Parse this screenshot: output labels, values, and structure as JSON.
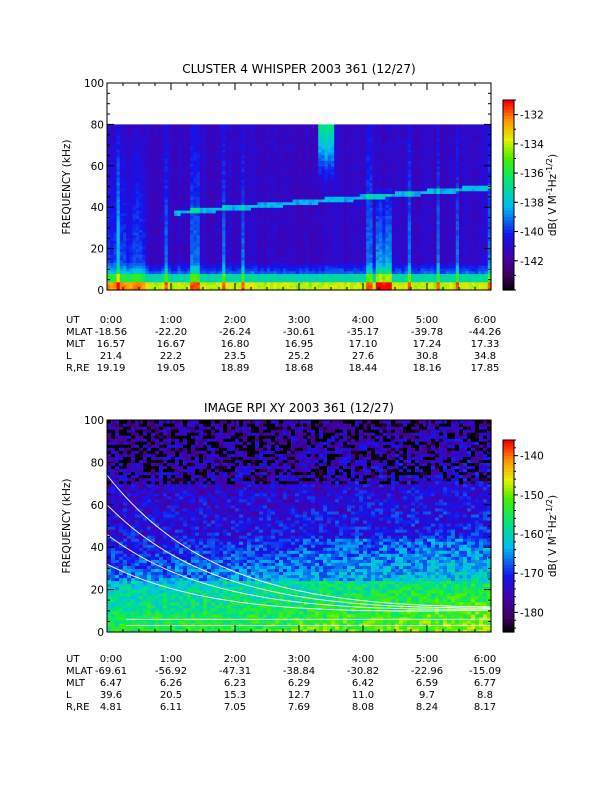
{
  "chart_data": [
    {
      "type": "heatmap",
      "title": "CLUSTER 4 WHISPER 2003 361 (12/27)",
      "ylabel": "FREQUENCY (kHz)",
      "ylim": [
        0,
        100
      ],
      "yticks": [
        "0",
        "20",
        "40",
        "60",
        "80",
        "100"
      ],
      "x_ticks": [
        "0:00",
        "1:00",
        "2:00",
        "3:00",
        "4:00",
        "5:00",
        "6:00"
      ],
      "x_range_ut_hours": [
        0,
        6
      ],
      "data_upper_limit_khz": 80,
      "colorbar": {
        "label": "dB( V M",
        "label_sup1": "-1",
        "label_mid": " Hz",
        "label_sup2": "-1/2",
        "label_end": ")",
        "range": [
          -144,
          -131
        ],
        "ticks": [
          "-132",
          "-134",
          "-136",
          "-138",
          "-140",
          "-142"
        ]
      },
      "ephemeris": [
        {
          "label": "UT",
          "values": [
            "0:00",
            "1:00",
            "2:00",
            "3:00",
            "4:00",
            "5:00",
            "6:00"
          ]
        },
        {
          "label": "MLAT",
          "values": [
            "-18.56",
            "-22.20",
            "-26.24",
            "-30.61",
            "-35.17",
            "-39.78",
            "-44.26"
          ]
        },
        {
          "label": "MLT",
          "values": [
            "16.57",
            "16.67",
            "16.80",
            "16.95",
            "17.10",
            "17.24",
            "17.33"
          ]
        },
        {
          "label": "L",
          "values": [
            "21.4",
            "22.2",
            "23.5",
            "25.2",
            "27.6",
            "30.8",
            "34.8"
          ]
        },
        {
          "label": "R,RE",
          "values": [
            "19.19",
            "19.05",
            "18.89",
            "18.68",
            "18.44",
            "18.16",
            "17.85"
          ]
        }
      ]
    },
    {
      "type": "heatmap",
      "title": "IMAGE RPI XY 2003 361 (12/27)",
      "ylabel": "FREQUENCY (kHz)",
      "ylim": [
        0,
        100
      ],
      "yticks": [
        "0",
        "20",
        "40",
        "60",
        "80",
        "100"
      ],
      "x_ticks": [
        "0:00",
        "1:00",
        "2:00",
        "3:00",
        "4:00",
        "5:00",
        "6:00"
      ],
      "x_range_ut_hours": [
        0,
        6
      ],
      "colorbar": {
        "label": "dB( V M",
        "label_sup1": "-1",
        "label_mid": " Hz",
        "label_sup2": "-1/2",
        "label_end": ")",
        "range": [
          -185,
          -136
        ],
        "ticks": [
          "-140",
          "-150",
          "-160",
          "-170",
          "-180"
        ]
      },
      "ephemeris": [
        {
          "label": "UT",
          "values": [
            "0:00",
            "1:00",
            "2:00",
            "3:00",
            "4:00",
            "5:00",
            "6:00"
          ]
        },
        {
          "label": "MLAT",
          "values": [
            "-69.61",
            "-56.92",
            "-47.31",
            "-38.84",
            "-30.82",
            "-22.96",
            "-15.09"
          ]
        },
        {
          "label": "MLT",
          "values": [
            "6.47",
            "6.26",
            "6.23",
            "6.29",
            "6.42",
            "6.59",
            "6.77"
          ]
        },
        {
          "label": "L",
          "values": [
            "39.6",
            "20.5",
            "15.3",
            "12.7",
            "11.0",
            "9.7",
            "8.8"
          ]
        },
        {
          "label": "R,RE",
          "values": [
            "4.81",
            "6.11",
            "7.05",
            "7.69",
            "8.08",
            "8.24",
            "8.17"
          ]
        }
      ]
    }
  ]
}
